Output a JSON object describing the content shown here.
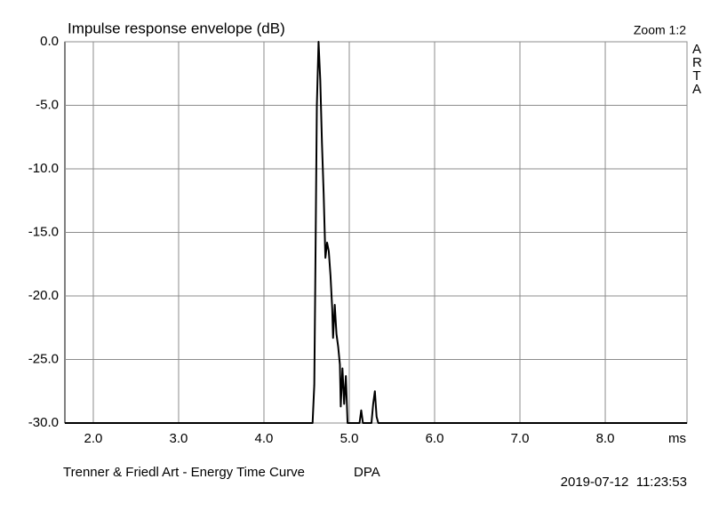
{
  "chart_data": {
    "type": "line",
    "title": "Impulse response envelope (dB)",
    "zoom": "Zoom 1:2",
    "watermark": "ARTA",
    "x_label": "ms",
    "footer": "Trenner & Friedl Art - Energy Time Curve",
    "footer_name": "DPA",
    "timestamp": "2019-07-12  11:23:53",
    "x": [
      1.667,
      4.57,
      4.59,
      4.6,
      4.62,
      4.64,
      4.66,
      4.68,
      4.7,
      4.72,
      4.74,
      4.76,
      4.78,
      4.8,
      4.81,
      4.83,
      4.85,
      4.87,
      4.89,
      4.9,
      4.92,
      4.94,
      4.96,
      4.98,
      5.12,
      5.14,
      5.16,
      5.26,
      5.28,
      5.3,
      5.32,
      5.34,
      8.958
    ],
    "series": [
      {
        "name": "ETC",
        "color": "#000000",
        "values": [
          -30,
          -30,
          -27,
          -20,
          -5,
          0,
          -3,
          -8,
          -12,
          -17,
          -15.8,
          -16.5,
          -18.4,
          -21,
          -23.3,
          -20.7,
          -23,
          -24,
          -25.4,
          -28.7,
          -25.7,
          -28.5,
          -26.3,
          -30,
          -30,
          -29,
          -30,
          -30,
          -28.5,
          -27.5,
          -29.5,
          -30,
          -30
        ]
      }
    ],
    "xlim": [
      1.667,
      8.958
    ],
    "ylim": [
      -30,
      0
    ],
    "xticks": [
      {
        "value": 2,
        "label": "2.0"
      },
      {
        "value": 3,
        "label": "3.0"
      },
      {
        "value": 4,
        "label": "4.0"
      },
      {
        "value": 5,
        "label": "5.0"
      },
      {
        "value": 6,
        "label": "6.0"
      },
      {
        "value": 7,
        "label": "7.0"
      },
      {
        "value": 8,
        "label": "8.0"
      }
    ],
    "yticks": [
      {
        "value": 0,
        "label": "0.0"
      },
      {
        "value": -5,
        "label": "-5.0"
      },
      {
        "value": -10,
        "label": "-10.0"
      },
      {
        "value": -15,
        "label": "-15.0"
      },
      {
        "value": -20,
        "label": "-20.0"
      },
      {
        "value": -25,
        "label": "-25.0"
      },
      {
        "value": -30,
        "label": "-30.0"
      }
    ],
    "grid": true,
    "grid_color": "#8c8c8c"
  }
}
